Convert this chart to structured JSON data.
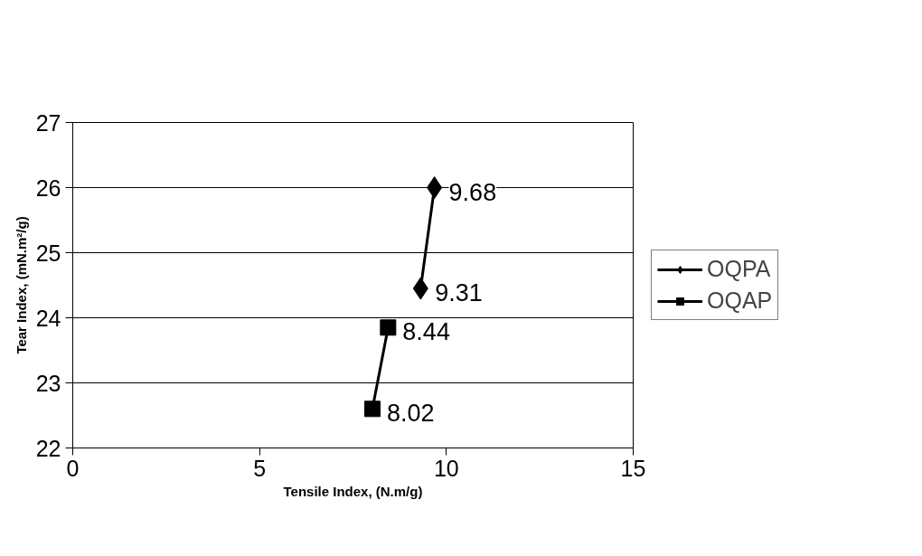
{
  "chart_data": {
    "type": "line",
    "xlabel": "Tensile Index, (N.m/g)",
    "ylabel": "Tear Index, (mN.m²/g)",
    "xlim": [
      0,
      15
    ],
    "xticks": [
      0,
      5,
      10,
      15
    ],
    "ylim": [
      22,
      27
    ],
    "yticks": [
      22,
      23,
      24,
      25,
      26,
      27
    ],
    "grid": "y",
    "legend": "right",
    "line_style": "solid",
    "series": [
      {
        "name": "OQPA",
        "color": "#000000",
        "marker": "diamond",
        "x": [
          9.31,
          9.68
        ],
        "values": [
          24.45,
          26.0
        ]
      },
      {
        "name": "OQAP",
        "color": "#000000",
        "marker": "square",
        "x": [
          8.02,
          8.44
        ],
        "values": [
          22.6,
          23.85
        ]
      }
    ],
    "annotations": [
      {
        "text": "9.68",
        "x": 9.68,
        "y": 26.0
      },
      {
        "text": "9.31",
        "x": 9.31,
        "y": 24.45
      },
      {
        "text": "8.44",
        "x": 8.44,
        "y": 23.85
      },
      {
        "text": "8.02",
        "x": 8.02,
        "y": 22.6
      }
    ]
  }
}
